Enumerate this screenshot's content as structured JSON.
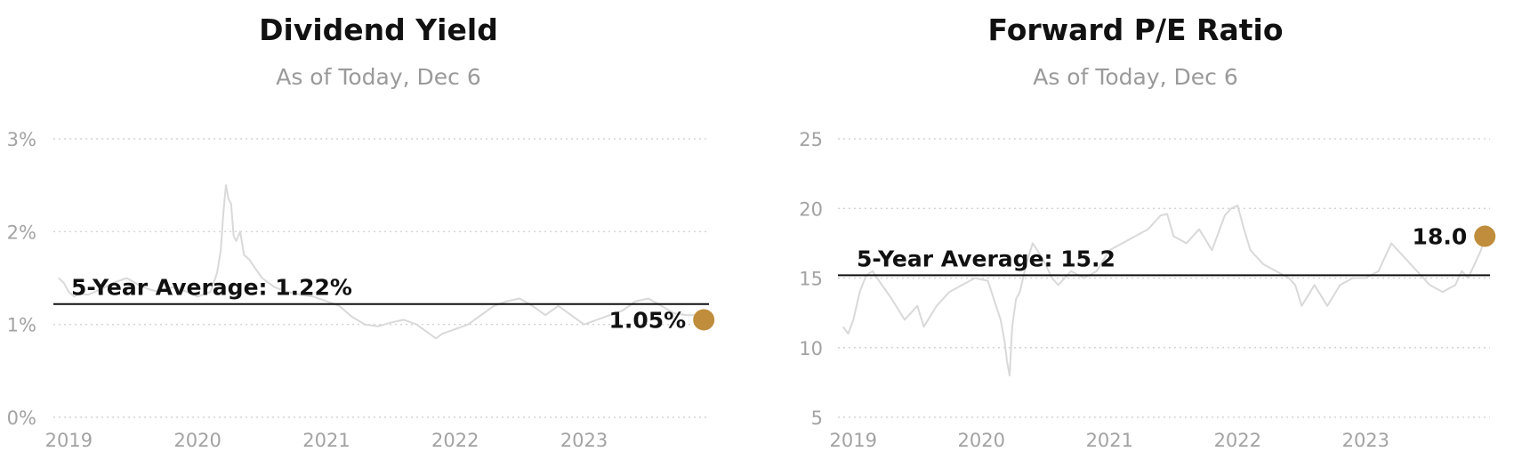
{
  "chart_data": [
    {
      "type": "line",
      "title": "Dividend Yield",
      "subtitle": "As of Today, Dec 6",
      "unit": "%",
      "y_ticks": [
        0,
        1,
        2,
        3
      ],
      "y_tick_labels": [
        "0%",
        "1%",
        "2%",
        "3%"
      ],
      "ylim": [
        0,
        3
      ],
      "x_ticks": [
        2019,
        2020,
        2021,
        2022,
        2023
      ],
      "x_tick_labels": [
        "2019",
        "2020",
        "2021",
        "2022",
        "2023"
      ],
      "xlim": [
        2018.88,
        2023.97
      ],
      "grid": true,
      "average": {
        "label": "5-Year Average: 1.22%",
        "value": 1.22
      },
      "current": {
        "label": "1.05%",
        "value": 1.05,
        "x": 2023.93
      },
      "colors": {
        "line": "#d9d9d9",
        "average": "#111111",
        "dot": "#c08d3c",
        "grid": "#cccccc"
      },
      "series": [
        {
          "x": [
            2018.92,
            2018.96,
            2019.0,
            2019.04,
            2019.08,
            2019.15,
            2019.25,
            2019.35,
            2019.45,
            2019.55,
            2019.62,
            2019.7,
            2019.8,
            2019.9,
            2020.0,
            2020.1,
            2020.15,
            2020.18,
            2020.2,
            2020.22,
            2020.24,
            2020.26,
            2020.28,
            2020.3,
            2020.33,
            2020.36,
            2020.4,
            2020.45,
            2020.5,
            2020.55,
            2020.6,
            2020.7,
            2020.8,
            2020.9,
            2021.0,
            2021.1,
            2021.2,
            2021.3,
            2021.4,
            2021.5,
            2021.6,
            2021.7,
            2021.75,
            2021.8,
            2021.85,
            2021.9,
            2022.0,
            2022.1,
            2022.2,
            2022.3,
            2022.4,
            2022.5,
            2022.6,
            2022.7,
            2022.8,
            2022.9,
            2023.0,
            2023.1,
            2023.2,
            2023.3,
            2023.4,
            2023.5,
            2023.6,
            2023.7,
            2023.8,
            2023.9,
            2023.93
          ],
          "values": [
            1.5,
            1.45,
            1.35,
            1.3,
            1.33,
            1.32,
            1.38,
            1.45,
            1.5,
            1.42,
            1.38,
            1.35,
            1.4,
            1.36,
            1.3,
            1.35,
            1.55,
            1.8,
            2.2,
            2.5,
            2.35,
            2.3,
            1.95,
            1.9,
            2.0,
            1.75,
            1.7,
            1.6,
            1.5,
            1.45,
            1.4,
            1.35,
            1.32,
            1.3,
            1.25,
            1.2,
            1.08,
            1.0,
            0.98,
            1.02,
            1.05,
            1.0,
            0.95,
            0.9,
            0.85,
            0.9,
            0.95,
            1.0,
            1.1,
            1.2,
            1.25,
            1.28,
            1.2,
            1.1,
            1.2,
            1.1,
            1.0,
            1.05,
            1.1,
            1.15,
            1.25,
            1.28,
            1.2,
            1.12,
            1.1,
            1.1,
            1.05
          ]
        }
      ]
    },
    {
      "type": "line",
      "title": "Forward P/E Ratio",
      "subtitle": "As of Today, Dec 6",
      "unit": "",
      "y_ticks": [
        5,
        10,
        15,
        20,
        25
      ],
      "y_tick_labels": [
        "5",
        "10",
        "15",
        "20",
        "25"
      ],
      "ylim": [
        5,
        25
      ],
      "x_ticks": [
        2019,
        2020,
        2021,
        2022,
        2023
      ],
      "x_tick_labels": [
        "2019",
        "2020",
        "2021",
        "2022",
        "2023"
      ],
      "xlim": [
        2018.88,
        2023.97
      ],
      "grid": true,
      "average": {
        "label": "5-Year Average: 15.2",
        "value": 15.2
      },
      "current": {
        "label": "18.0",
        "value": 18.0,
        "x": 2023.93
      },
      "colors": {
        "line": "#d9d9d9",
        "average": "#111111",
        "dot": "#c08d3c",
        "grid": "#cccccc"
      },
      "series": [
        {
          "x": [
            2018.92,
            2018.96,
            2019.0,
            2019.05,
            2019.1,
            2019.15,
            2019.2,
            2019.3,
            2019.4,
            2019.5,
            2019.55,
            2019.65,
            2019.75,
            2019.85,
            2019.95,
            2020.05,
            2020.15,
            2020.18,
            2020.2,
            2020.22,
            2020.24,
            2020.27,
            2020.3,
            2020.35,
            2020.4,
            2020.45,
            2020.5,
            2020.55,
            2020.6,
            2020.7,
            2020.8,
            2020.9,
            2021.0,
            2021.1,
            2021.2,
            2021.3,
            2021.4,
            2021.45,
            2021.5,
            2021.6,
            2021.7,
            2021.8,
            2021.9,
            2021.95,
            2022.0,
            2022.05,
            2022.1,
            2022.2,
            2022.3,
            2022.4,
            2022.45,
            2022.5,
            2022.6,
            2022.7,
            2022.8,
            2022.9,
            2023.0,
            2023.1,
            2023.15,
            2023.2,
            2023.3,
            2023.4,
            2023.5,
            2023.6,
            2023.7,
            2023.75,
            2023.8,
            2023.85,
            2023.9,
            2023.93
          ],
          "values": [
            11.5,
            11.0,
            12.0,
            14.0,
            15.2,
            15.5,
            14.8,
            13.5,
            12.0,
            13.0,
            11.5,
            13.0,
            14.0,
            14.5,
            15.0,
            14.8,
            12.0,
            10.5,
            9.0,
            8.0,
            11.5,
            13.5,
            14.0,
            16.0,
            17.5,
            16.8,
            16.0,
            15.0,
            14.5,
            15.5,
            15.0,
            15.5,
            17.0,
            17.5,
            18.0,
            18.5,
            19.5,
            19.6,
            18.0,
            17.5,
            18.5,
            17.0,
            19.5,
            20.0,
            20.2,
            18.5,
            17.0,
            16.0,
            15.5,
            15.0,
            14.5,
            13.0,
            14.5,
            13.0,
            14.5,
            15.0,
            15.0,
            15.5,
            16.5,
            17.5,
            16.5,
            15.5,
            14.5,
            14.0,
            14.5,
            15.5,
            15.0,
            16.0,
            17.0,
            18.0
          ]
        }
      ]
    }
  ]
}
